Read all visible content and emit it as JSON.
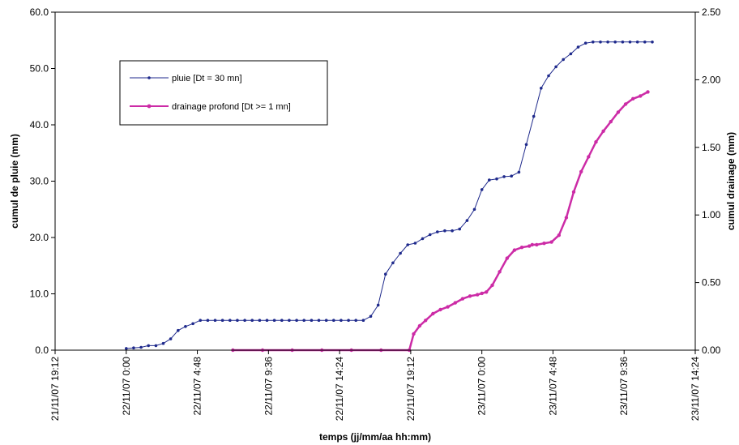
{
  "chart_data": {
    "type": "line",
    "xlabel": "temps (jj/mm/aa hh:mm)",
    "ylabel_left": "cumul de pluie (mm)",
    "ylabel_right": "cumul drainage (mm)",
    "x_ticks": [
      "21/11/07 19:12",
      "22/11/07 0:00",
      "22/11/07 4:48",
      "22/11/07 9:36",
      "22/11/07 14:24",
      "22/11/07 19:12",
      "23/11/07 0:00",
      "23/11/07 4:48",
      "23/11/07 9:36",
      "23/11/07 14:24"
    ],
    "x_range_hours": [
      0,
      43.2
    ],
    "ylim_left": [
      0,
      60
    ],
    "ylim_right": [
      0,
      2.5
    ],
    "y_ticks_left": [
      "0.0",
      "10.0",
      "20.0",
      "30.0",
      "40.0",
      "50.0",
      "60.0"
    ],
    "y_ticks_right": [
      "0.00",
      "0.50",
      "1.00",
      "1.50",
      "2.00",
      "2.50"
    ],
    "legend_position": "upper-left",
    "series": [
      {
        "name": "pluie [Dt = 30 mn]",
        "axis": "left",
        "color": "#1f2a8c",
        "x_hours": [
          4.8,
          5.3,
          5.8,
          6.3,
          6.8,
          7.3,
          7.8,
          8.3,
          8.8,
          9.3,
          9.8,
          10.3,
          10.8,
          11.3,
          11.8,
          12.3,
          12.8,
          13.3,
          13.8,
          14.3,
          14.8,
          15.3,
          15.8,
          16.3,
          16.8,
          17.3,
          17.8,
          18.3,
          18.8,
          19.3,
          19.8,
          20.3,
          20.8,
          21.3,
          21.8,
          22.3,
          22.8,
          23.3,
          23.8,
          24.3,
          24.8,
          25.3,
          25.8,
          26.3,
          26.8,
          27.3,
          27.8,
          28.3,
          28.8,
          29.3,
          29.8,
          30.3,
          30.8,
          31.3,
          31.8,
          32.3,
          32.8,
          33.3,
          33.8,
          34.3,
          34.8,
          35.3,
          35.8,
          36.3,
          36.8,
          37.3,
          37.8,
          38.3,
          38.8,
          39.3,
          39.8,
          40.3
        ],
        "values": [
          0.3,
          0.4,
          0.5,
          0.8,
          0.8,
          1.2,
          2.0,
          3.5,
          4.2,
          4.7,
          5.3,
          5.3,
          5.3,
          5.3,
          5.3,
          5.3,
          5.3,
          5.3,
          5.3,
          5.3,
          5.3,
          5.3,
          5.3,
          5.3,
          5.3,
          5.3,
          5.3,
          5.3,
          5.3,
          5.3,
          5.3,
          5.3,
          5.3,
          6.0,
          8.0,
          13.5,
          15.5,
          17.2,
          18.7,
          19.0,
          19.8,
          20.5,
          21.0,
          21.2,
          21.2,
          21.5,
          23.0,
          25.0,
          28.5,
          30.2,
          30.4,
          30.8,
          30.9,
          31.6,
          36.5,
          41.5,
          46.5,
          48.7,
          50.3,
          51.6,
          52.6,
          53.8,
          54.5,
          54.7,
          54.7,
          54.7,
          54.7,
          54.7,
          54.7,
          54.7,
          54.7,
          54.7
        ]
      },
      {
        "name": "drainage profond [Dt >= 1 mn]",
        "axis": "right",
        "color": "#cc2ba6",
        "x_hours": [
          12.0,
          14.0,
          16.0,
          18.0,
          20.0,
          22.0,
          23.9,
          24.2,
          24.6,
          25.0,
          25.5,
          26.0,
          26.5,
          27.0,
          27.5,
          28.0,
          28.5,
          28.8,
          29.1,
          29.5,
          30.0,
          30.5,
          31.0,
          31.5,
          32.0,
          32.2,
          32.5,
          33.0,
          33.5,
          34.0,
          34.5,
          35.0,
          35.5,
          36.0,
          36.5,
          37.0,
          37.5,
          38.0,
          38.5,
          39.0,
          39.5,
          40.0
        ],
        "values": [
          0.0,
          0.0,
          0.0,
          0.0,
          0.0,
          0.0,
          0.0,
          0.12,
          0.18,
          0.22,
          0.27,
          0.3,
          0.32,
          0.35,
          0.38,
          0.4,
          0.41,
          0.42,
          0.43,
          0.48,
          0.58,
          0.68,
          0.74,
          0.76,
          0.77,
          0.78,
          0.78,
          0.79,
          0.8,
          0.85,
          0.98,
          1.17,
          1.32,
          1.43,
          1.54,
          1.62,
          1.69,
          1.76,
          1.82,
          1.86,
          1.88,
          1.91
        ]
      }
    ]
  }
}
